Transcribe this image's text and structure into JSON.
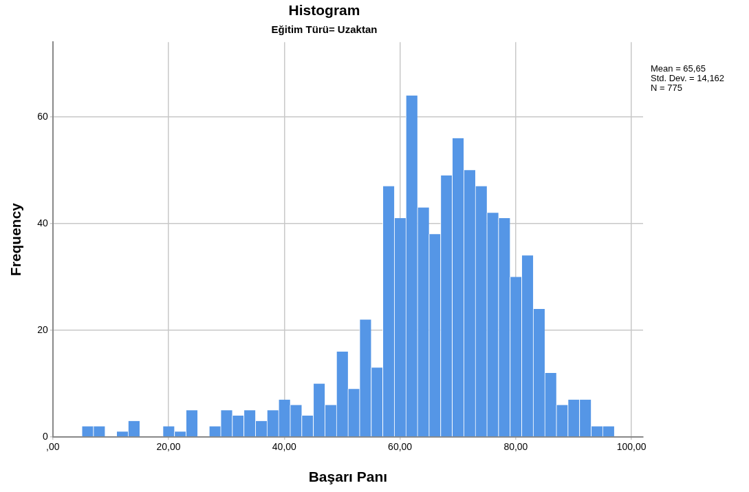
{
  "chart_data": {
    "type": "histogram",
    "title": "Histogram",
    "subtitle": "Eğitim Türü= Uzaktan",
    "xlabel": "Başarı Panı",
    "ylabel": "Frequency",
    "bins": [
      5,
      7,
      9,
      11,
      13,
      15,
      17,
      19,
      21,
      23,
      25,
      27,
      29,
      31,
      33,
      35,
      37,
      39,
      41,
      43,
      45,
      47,
      49,
      51,
      53,
      55,
      57,
      59,
      61,
      63,
      65,
      67,
      69,
      71,
      73,
      75,
      77,
      79,
      81,
      83,
      85,
      87,
      89,
      91,
      93,
      95,
      97
    ],
    "values": [
      2,
      2,
      0,
      1,
      3,
      0,
      0,
      2,
      1,
      5,
      0,
      2,
      5,
      4,
      5,
      3,
      5,
      7,
      6,
      4,
      10,
      6,
      16,
      9,
      22,
      13,
      47,
      41,
      64,
      43,
      38,
      49,
      56,
      50,
      47,
      42,
      41,
      30,
      34,
      24,
      12,
      6,
      7,
      7,
      2,
      2
    ],
    "color": "#5596e6",
    "xlim": [
      0,
      102
    ],
    "xticks": [
      {
        "value": 0,
        "label": ",00"
      },
      {
        "value": 20,
        "label": "20,00"
      },
      {
        "value": 40,
        "label": "40,00"
      },
      {
        "value": 60,
        "label": "60,00"
      },
      {
        "value": 80,
        "label": "80,00"
      },
      {
        "value": 100,
        "label": "100,00"
      }
    ],
    "ylim": [
      0,
      74
    ],
    "yticks": [
      0,
      20,
      40,
      60
    ],
    "grid": true,
    "legend": false,
    "annotations": [
      "Mean = 65,65",
      "Std. Dev. = 14,162",
      "N = 775"
    ]
  }
}
